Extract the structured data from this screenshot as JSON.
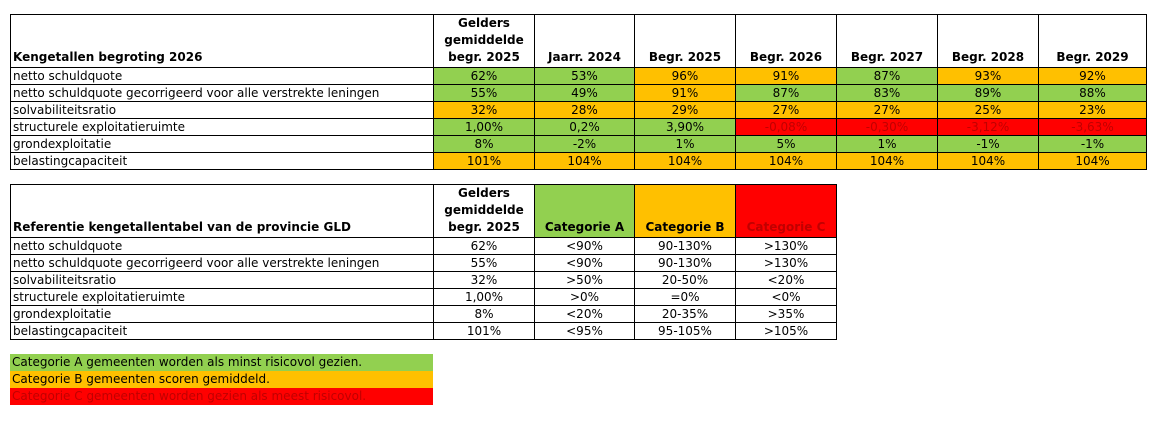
{
  "fill_colors": {
    "A": "#92d050",
    "B": "#ffc000",
    "C": "#ff0000"
  },
  "table1": {
    "header": [
      "Kengetallen begroting 2026",
      "Gelders gemiddelde begr. 2025",
      "Jaarr. 2024",
      "Begr. 2025",
      "Begr. 2026",
      "Begr. 2027",
      "Begr. 2028",
      "Begr. 2029"
    ],
    "rows": [
      {
        "label": "netto schuldquote",
        "cells": [
          "62%",
          "53%",
          "96%",
          "91%",
          "87%",
          "93%",
          "92%"
        ],
        "fills": [
          "A",
          "A",
          "B",
          "B",
          "A",
          "B",
          "B"
        ]
      },
      {
        "label": "netto schuldquote gecorrigeerd voor alle verstrekte leningen",
        "cells": [
          "55%",
          "49%",
          "91%",
          "87%",
          "83%",
          "89%",
          "88%"
        ],
        "fills": [
          "A",
          "A",
          "B",
          "A",
          "A",
          "A",
          "A"
        ]
      },
      {
        "label": "solvabiliteitsratio",
        "cells": [
          "32%",
          "28%",
          "29%",
          "27%",
          "27%",
          "25%",
          "23%"
        ],
        "fills": [
          "B",
          "B",
          "B",
          "B",
          "B",
          "B",
          "B"
        ]
      },
      {
        "label": "structurele exploitatieruimte",
        "cells": [
          "1,00%",
          "0,2%",
          "3,90%",
          "-0,08%",
          "-0,30%",
          "-3,12%",
          "-3,63%"
        ],
        "fills": [
          "A",
          "A",
          "A",
          "C",
          "C",
          "C",
          "C"
        ]
      },
      {
        "label": "grondexploitatie",
        "cells": [
          "8%",
          "-2%",
          "1%",
          "5%",
          "1%",
          "-1%",
          "-1%"
        ],
        "fills": [
          "A",
          "A",
          "A",
          "A",
          "A",
          "A",
          "A"
        ]
      },
      {
        "label": "belastingcapaciteit",
        "cells": [
          "101%",
          "104%",
          "104%",
          "104%",
          "104%",
          "104%",
          "104%"
        ],
        "fills": [
          "B",
          "B",
          "B",
          "B",
          "B",
          "B",
          "B"
        ]
      }
    ]
  },
  "table2": {
    "header": [
      "Referentie kengetallentabel van de provincie GLD",
      "Gelders gemiddelde begr. 2025",
      "Categorie A",
      "Categorie B",
      "Categorie C"
    ],
    "header_fills": [
      null,
      null,
      "A",
      "B",
      "C"
    ],
    "rows": [
      {
        "label": "netto schuldquote",
        "cells": [
          "62%",
          "<90%",
          "90-130%",
          ">130%"
        ]
      },
      {
        "label": "netto schuldquote gecorrigeerd voor alle verstrekte leningen",
        "cells": [
          "55%",
          "<90%",
          "90-130%",
          ">130%"
        ]
      },
      {
        "label": "solvabiliteitsratio",
        "cells": [
          "32%",
          ">50%",
          "20-50%",
          "<20%"
        ]
      },
      {
        "label": "structurele exploitatieruimte",
        "cells": [
          "1,00%",
          ">0%",
          "=0%",
          "<0%"
        ]
      },
      {
        "label": "grondexploitatie",
        "cells": [
          "8%",
          "<20%",
          "20-35%",
          ">35%"
        ]
      },
      {
        "label": "belastingcapaciteit",
        "cells": [
          "101%",
          "<95%",
          "95-105%",
          ">105%"
        ]
      }
    ]
  },
  "legend": [
    {
      "text": "Categorie A gemeenten worden als minst risicovol gezien.",
      "fill": "A"
    },
    {
      "text": "Categorie B gemeenten scoren gemiddeld.",
      "fill": "B"
    },
    {
      "text": "Categorie C gemeenten worden gezien als meest risicovol.",
      "fill": "C"
    }
  ]
}
